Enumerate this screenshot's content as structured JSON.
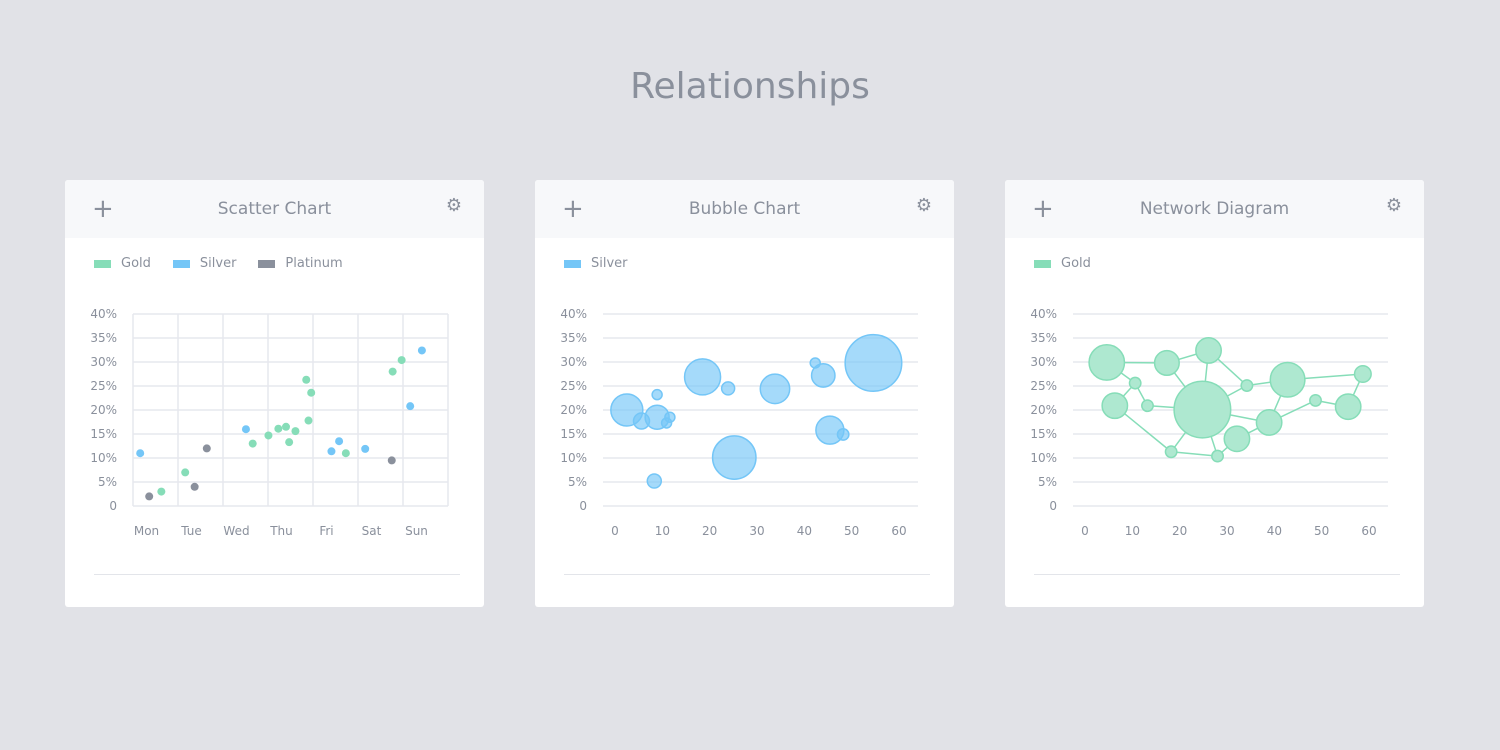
{
  "page_title": "Relationships",
  "icons": {
    "add": "+",
    "settings": "⚙"
  },
  "cards": [
    {
      "title": "Scatter Chart",
      "legend": [
        {
          "label": "Gold",
          "color": "#86ddb8"
        },
        {
          "label": "Silver",
          "color": "#74c6f7"
        },
        {
          "label": "Platinum",
          "color": "#8a909c"
        }
      ]
    },
    {
      "title": "Bubble Chart",
      "legend": [
        {
          "label": "Silver",
          "color": "#74c6f7"
        }
      ]
    },
    {
      "title": "Network Diagram",
      "legend": [
        {
          "label": "Gold",
          "color": "#86ddb8"
        }
      ]
    }
  ],
  "chart_data": [
    {
      "type": "scatter",
      "yticks": [
        "0",
        "5%",
        "10%",
        "15%",
        "20%",
        "25%",
        "30%",
        "35%",
        "40%"
      ],
      "ylim": [
        0,
        40
      ],
      "categories": [
        "Mon",
        "Tue",
        "Wed",
        "Thu",
        "Fri",
        "Sat",
        "Sun"
      ],
      "grid": "both",
      "legend": "top-left",
      "series": [
        {
          "name": "Gold",
          "color": "#86ddb8",
          "points": [
            [
              0.63,
              3
            ],
            [
              1.16,
              7
            ],
            [
              2.66,
              13
            ],
            [
              3.01,
              14.7
            ],
            [
              3.23,
              16.1
            ],
            [
              3.4,
              16.5
            ],
            [
              3.47,
              13.3
            ],
            [
              3.61,
              15.6
            ],
            [
              3.85,
              26.3
            ],
            [
              3.96,
              23.6
            ],
            [
              3.9,
              17.8
            ],
            [
              4.73,
              11
            ],
            [
              5.77,
              28
            ],
            [
              5.97,
              30.4
            ]
          ]
        },
        {
          "name": "Silver",
          "color": "#74c6f7",
          "points": [
            [
              0.16,
              11
            ],
            [
              2.51,
              16
            ],
            [
              4.41,
              11.4
            ],
            [
              4.58,
              13.5
            ],
            [
              5.16,
              11.9
            ],
            [
              6.16,
              20.8
            ],
            [
              6.42,
              32.4
            ]
          ]
        },
        {
          "name": "Platinum",
          "color": "#8a909c",
          "points": [
            [
              0.36,
              2
            ],
            [
              1.37,
              4
            ],
            [
              1.64,
              12
            ],
            [
              5.75,
              9.5
            ]
          ]
        }
      ]
    },
    {
      "type": "bubble",
      "yticks": [
        "0",
        "5%",
        "10%",
        "15%",
        "20%",
        "25%",
        "30%",
        "35%",
        "40%"
      ],
      "ylim": [
        0,
        40
      ],
      "xticks": [
        "0",
        "10",
        "20",
        "30",
        "40",
        "50",
        "60"
      ],
      "xlim": [
        0,
        60
      ],
      "grid": "horizontal",
      "legend": "top-left",
      "series": [
        {
          "name": "Silver",
          "color": "#74c6f7",
          "points": [
            {
              "x": 2.5,
              "y": 20,
              "size": 16
            },
            {
              "x": 5.6,
              "y": 17.7,
              "size": 8
            },
            {
              "x": 8.9,
              "y": 18.5,
              "size": 12
            },
            {
              "x": 8.9,
              "y": 23.2,
              "size": 5
            },
            {
              "x": 10.9,
              "y": 17.3,
              "size": 5
            },
            {
              "x": 11.6,
              "y": 18.5,
              "size": 5
            },
            {
              "x": 8.3,
              "y": 5.2,
              "size": 7
            },
            {
              "x": 18.5,
              "y": 26.9,
              "size": 18
            },
            {
              "x": 23.9,
              "y": 24.5,
              "size": 6.5
            },
            {
              "x": 25.2,
              "y": 10.1,
              "size": 21.7
            },
            {
              "x": 33.8,
              "y": 24.4,
              "size": 14.7
            },
            {
              "x": 42.3,
              "y": 29.8,
              "size": 5
            },
            {
              "x": 44,
              "y": 27.2,
              "size": 11.7
            },
            {
              "x": 45.4,
              "y": 15.8,
              "size": 14
            },
            {
              "x": 48.2,
              "y": 14.9,
              "size": 5.7
            },
            {
              "x": 54.6,
              "y": 29.8,
              "size": 28.3
            }
          ]
        }
      ]
    },
    {
      "type": "network",
      "yticks": [
        "0",
        "5%",
        "10%",
        "15%",
        "20%",
        "25%",
        "30%",
        "35%",
        "40%"
      ],
      "ylim": [
        0,
        40
      ],
      "xticks": [
        "0",
        "10",
        "20",
        "30",
        "40",
        "50",
        "60"
      ],
      "xlim": [
        0,
        60
      ],
      "grid": "horizontal",
      "legend": "top-left",
      "color": "#86ddb8",
      "nodes": [
        {
          "id": "A",
          "x": 4.6,
          "y": 29.9,
          "size": 17.7
        },
        {
          "id": "B",
          "x": 10.6,
          "y": 25.6,
          "size": 5.7
        },
        {
          "id": "C",
          "x": 6.3,
          "y": 20.9,
          "size": 12.7
        },
        {
          "id": "D",
          "x": 13.2,
          "y": 20.9,
          "size": 5.7
        },
        {
          "id": "E",
          "x": 17.3,
          "y": 29.8,
          "size": 12.3
        },
        {
          "id": "F",
          "x": 26.1,
          "y": 32.4,
          "size": 12.7
        },
        {
          "id": "G",
          "x": 24.8,
          "y": 20.1,
          "size": 28.3
        },
        {
          "id": "H",
          "x": 34.2,
          "y": 25.1,
          "size": 5.7
        },
        {
          "id": "I",
          "x": 42.8,
          "y": 26.3,
          "size": 17.3
        },
        {
          "id": "J",
          "x": 58.7,
          "y": 27.5,
          "size": 8.3
        },
        {
          "id": "K",
          "x": 48.7,
          "y": 22,
          "size": 5.7
        },
        {
          "id": "L",
          "x": 55.6,
          "y": 20.7,
          "size": 12.7
        },
        {
          "id": "M",
          "x": 38.9,
          "y": 17.4,
          "size": 12.7
        },
        {
          "id": "N",
          "x": 32.1,
          "y": 14,
          "size": 12.7
        },
        {
          "id": "O",
          "x": 18.2,
          "y": 11.3,
          "size": 5.7
        },
        {
          "id": "P",
          "x": 28,
          "y": 10.4,
          "size": 5.7
        }
      ],
      "edges": [
        [
          "A",
          "E"
        ],
        [
          "A",
          "B"
        ],
        [
          "B",
          "C"
        ],
        [
          "B",
          "D"
        ],
        [
          "D",
          "G"
        ],
        [
          "C",
          "O"
        ],
        [
          "E",
          "F"
        ],
        [
          "E",
          "G"
        ],
        [
          "F",
          "G"
        ],
        [
          "F",
          "H"
        ],
        [
          "H",
          "G"
        ],
        [
          "H",
          "I"
        ],
        [
          "I",
          "J"
        ],
        [
          "I",
          "M"
        ],
        [
          "G",
          "M"
        ],
        [
          "M",
          "N"
        ],
        [
          "M",
          "K"
        ],
        [
          "K",
          "L"
        ],
        [
          "L",
          "J"
        ],
        [
          "N",
          "P"
        ],
        [
          "P",
          "O"
        ],
        [
          "G",
          "O"
        ],
        [
          "G",
          "P"
        ]
      ]
    }
  ]
}
